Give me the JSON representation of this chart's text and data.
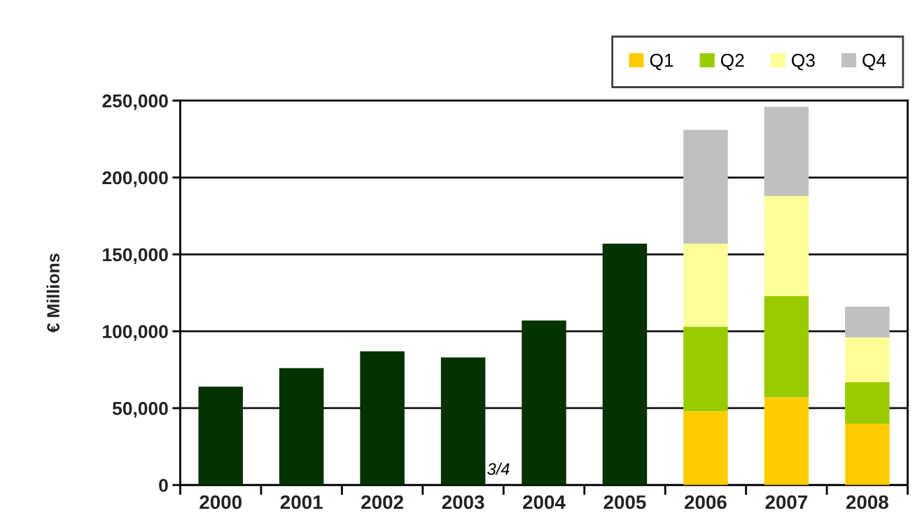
{
  "chart_data": {
    "type": "bar",
    "stacked": true,
    "ylabel": "€ Millions",
    "categories": [
      "2000",
      "2001",
      "2002",
      "2003",
      "2004",
      "2005",
      "2006",
      "2007",
      "2008"
    ],
    "series": [
      {
        "color": "#033300",
        "values": [
          64000,
          76000,
          87000,
          83000,
          107000,
          157000,
          null,
          null,
          null
        ]
      },
      {
        "name": "Q1",
        "color": "#ffcc00",
        "values": [
          null,
          null,
          null,
          null,
          null,
          null,
          48000,
          57000,
          40000
        ]
      },
      {
        "name": "Q2",
        "color": "#99cc00",
        "values": [
          null,
          null,
          null,
          null,
          null,
          null,
          55000,
          66000,
          27000
        ]
      },
      {
        "name": "Q3",
        "color": "#ffff99",
        "values": [
          null,
          null,
          null,
          null,
          null,
          null,
          54000,
          65000,
          29000
        ]
      },
      {
        "name": "Q4",
        "color": "#c0c0c0",
        "values": [
          null,
          null,
          null,
          null,
          null,
          null,
          74000,
          58000,
          20000
        ]
      }
    ],
    "ylim": [
      0,
      250000
    ],
    "yticks": [
      {
        "value": 0,
        "label": "0"
      },
      {
        "value": 50000,
        "label": "50,000"
      },
      {
        "value": 100000,
        "label": "100,000"
      },
      {
        "value": 150000,
        "label": "150,000"
      },
      {
        "value": 200000,
        "label": "200,000"
      },
      {
        "value": 250000,
        "label": "250,000"
      }
    ],
    "grid": "y",
    "legend": "top right",
    "annotations": [
      "3/4"
    ]
  }
}
